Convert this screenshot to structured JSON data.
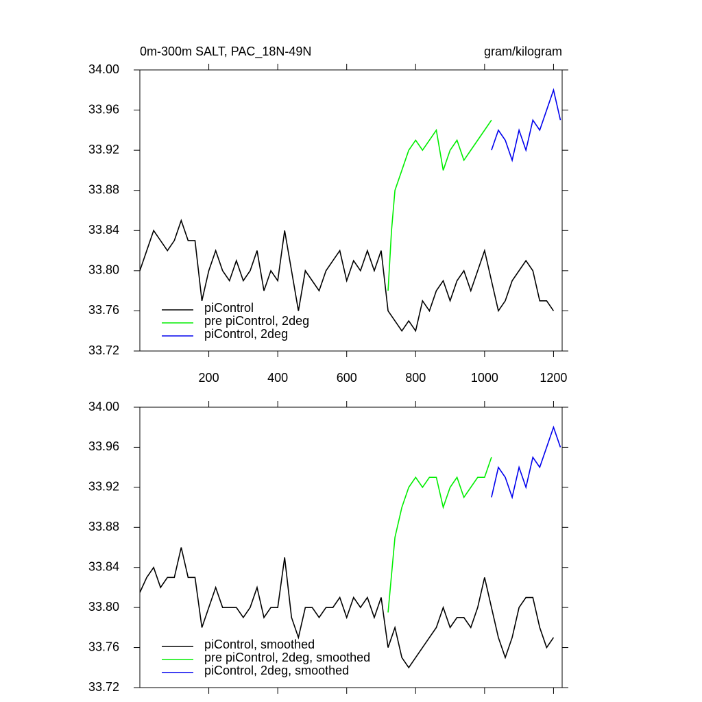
{
  "chart_data": [
    {
      "type": "line",
      "title": "0m-300m SALT, PAC_18N-49N",
      "subtitle": "gram/kilogram",
      "xlim": [
        0,
        1225
      ],
      "xticks": [
        200,
        400,
        600,
        800,
        1000,
        1200
      ],
      "ylim": [
        33.72,
        34
      ],
      "yticks": [
        33.72,
        33.76,
        {
          "value": 33.8,
          "label": "33.80"
        },
        33.84,
        33.88,
        33.92,
        33.96,
        {
          "value": 34,
          "label": "34.00"
        }
      ],
      "legend": "lower left",
      "series": [
        {
          "name": "piControl",
          "color": "#000000",
          "x": [
            0,
            20,
            40,
            60,
            80,
            100,
            120,
            140,
            160,
            180,
            200,
            220,
            240,
            260,
            280,
            300,
            320,
            340,
            360,
            380,
            400,
            420,
            440,
            460,
            480,
            500,
            520,
            540,
            560,
            580,
            600,
            620,
            640,
            660,
            680,
            700,
            720,
            740,
            760,
            780,
            800,
            820,
            840,
            860,
            880,
            900,
            920,
            940,
            960,
            980,
            1000,
            1020,
            1040,
            1060,
            1080,
            1100,
            1120,
            1140,
            1160,
            1180,
            1200
          ],
          "values": [
            33.8,
            33.82,
            33.84,
            33.83,
            33.82,
            33.83,
            33.85,
            33.83,
            33.83,
            33.77,
            33.8,
            33.82,
            33.8,
            33.79,
            33.81,
            33.79,
            33.8,
            33.82,
            33.78,
            33.8,
            33.79,
            33.84,
            33.8,
            33.76,
            33.8,
            33.79,
            33.78,
            33.8,
            33.81,
            33.82,
            33.79,
            33.81,
            33.8,
            33.82,
            33.8,
            33.82,
            33.76,
            33.75,
            33.74,
            33.75,
            33.74,
            33.77,
            33.76,
            33.78,
            33.79,
            33.77,
            33.79,
            33.8,
            33.78,
            33.8,
            33.82,
            33.79,
            33.76,
            33.77,
            33.79,
            33.8,
            33.81,
            33.8,
            33.77,
            33.77,
            33.76
          ]
        },
        {
          "name": "pre piControl, 2deg",
          "color": "#00ee00",
          "x": [
            720,
            730,
            740,
            760,
            780,
            800,
            820,
            840,
            860,
            880,
            900,
            920,
            940,
            960,
            980,
            1000,
            1020
          ],
          "values": [
            33.78,
            33.84,
            33.88,
            33.9,
            33.92,
            33.93,
            33.92,
            33.93,
            33.94,
            33.9,
            33.92,
            33.93,
            33.91,
            33.92,
            33.93,
            33.94,
            33.95
          ]
        },
        {
          "name": "piControl, 2deg",
          "color": "#0000ee",
          "x": [
            1020,
            1040,
            1060,
            1080,
            1100,
            1120,
            1140,
            1160,
            1180,
            1200,
            1220
          ],
          "values": [
            33.92,
            33.94,
            33.93,
            33.91,
            33.94,
            33.92,
            33.95,
            33.94,
            33.96,
            33.98,
            33.95
          ]
        }
      ]
    },
    {
      "type": "line",
      "xlim": [
        0,
        1225
      ],
      "xticks": [
        200,
        400,
        600,
        800,
        1000,
        1200
      ],
      "ylim": [
        33.72,
        34
      ],
      "yticks": [
        33.72,
        33.76,
        {
          "value": 33.8,
          "label": "33.80"
        },
        33.84,
        33.88,
        33.92,
        33.96,
        {
          "value": 34,
          "label": "34.00"
        }
      ],
      "legend": "lower left",
      "series": [
        {
          "name": "piControl, smoothed",
          "color": "#000000",
          "x": [
            0,
            20,
            40,
            60,
            80,
            100,
            120,
            140,
            160,
            180,
            200,
            220,
            240,
            260,
            280,
            300,
            320,
            340,
            360,
            380,
            400,
            420,
            440,
            460,
            480,
            500,
            520,
            540,
            560,
            580,
            600,
            620,
            640,
            660,
            680,
            700,
            720,
            740,
            760,
            780,
            800,
            820,
            840,
            860,
            880,
            900,
            920,
            940,
            960,
            980,
            1000,
            1020,
            1040,
            1060,
            1080,
            1100,
            1120,
            1140,
            1160,
            1180,
            1200
          ],
          "values": [
            33.815,
            33.83,
            33.84,
            33.82,
            33.83,
            33.83,
            33.86,
            33.83,
            33.83,
            33.78,
            33.8,
            33.82,
            33.8,
            33.8,
            33.8,
            33.79,
            33.8,
            33.82,
            33.79,
            33.8,
            33.8,
            33.85,
            33.79,
            33.77,
            33.8,
            33.8,
            33.79,
            33.8,
            33.8,
            33.81,
            33.79,
            33.81,
            33.8,
            33.81,
            33.79,
            33.81,
            33.76,
            33.78,
            33.75,
            33.74,
            33.75,
            33.76,
            33.77,
            33.78,
            33.8,
            33.78,
            33.79,
            33.79,
            33.78,
            33.8,
            33.83,
            33.8,
            33.77,
            33.75,
            33.77,
            33.8,
            33.81,
            33.81,
            33.78,
            33.76,
            33.77
          ]
        },
        {
          "name": "pre piControl, 2deg, smoothed",
          "color": "#00ee00",
          "x": [
            720,
            740,
            760,
            780,
            800,
            820,
            840,
            860,
            880,
            900,
            920,
            940,
            960,
            980,
            1000,
            1020
          ],
          "values": [
            33.795,
            33.87,
            33.9,
            33.92,
            33.93,
            33.92,
            33.93,
            33.93,
            33.9,
            33.92,
            33.93,
            33.91,
            33.92,
            33.93,
            33.93,
            33.95
          ]
        },
        {
          "name": "piControl, 2deg, smoothed",
          "color": "#0000ee",
          "x": [
            1020,
            1040,
            1060,
            1080,
            1100,
            1120,
            1140,
            1160,
            1180,
            1200,
            1220
          ],
          "values": [
            33.91,
            33.94,
            33.93,
            33.91,
            33.94,
            33.92,
            33.95,
            33.94,
            33.96,
            33.98,
            33.96
          ]
        }
      ]
    }
  ]
}
